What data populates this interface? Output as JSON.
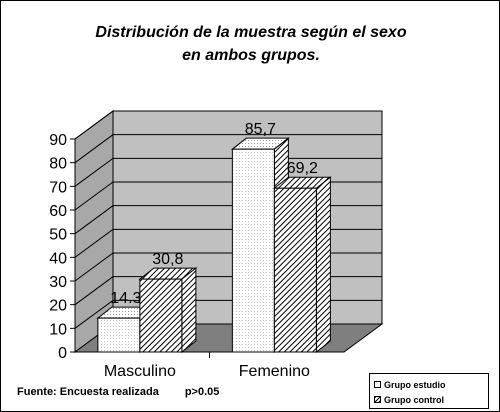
{
  "title_line1": "Distribución de la muestra según el sexo",
  "title_line2": "en ambos grupos.",
  "source_note": "Fuente: Encuesta realizada",
  "p_value_note": "p>0.05",
  "chart_data": {
    "type": "bar",
    "title": "Distribución de la muestra según el sexo en ambos grupos.",
    "categories": [
      "Masculino",
      "Femenino"
    ],
    "series": [
      {
        "name": "Grupo estudio",
        "values": [
          14.3,
          85.7
        ],
        "labels": [
          "14.3",
          "85,7"
        ]
      },
      {
        "name": "Grupo control",
        "values": [
          30.8,
          69.2
        ],
        "labels": [
          "30,8",
          "69,2"
        ]
      }
    ],
    "yticks": [
      "0",
      "10",
      "20",
      "30",
      "40",
      "50",
      "60",
      "70",
      "80",
      "90"
    ],
    "ylim": [
      0,
      90
    ],
    "grid": true,
    "three_d": true,
    "legend_position": "bottom-right",
    "colors": {
      "wall": "#c0c0c0",
      "side_wall": "#a8a8a8",
      "floor": "#7f7f7f",
      "estudio": "#ffffff",
      "control_hatch": "#000000"
    }
  }
}
